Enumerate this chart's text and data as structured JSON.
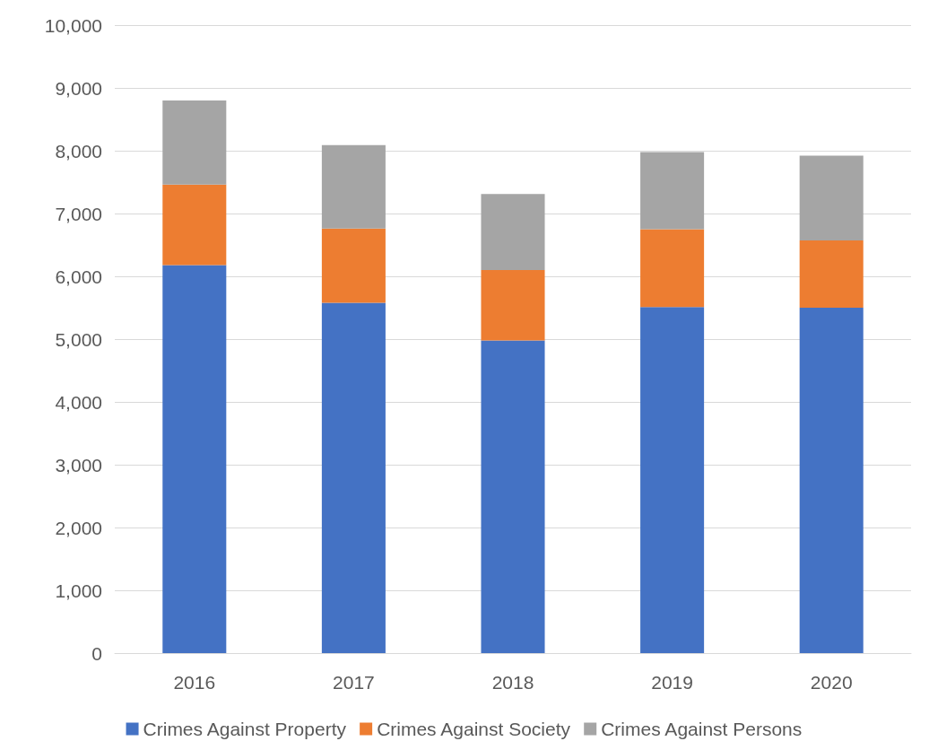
{
  "chart_data": {
    "type": "bar",
    "stacked": true,
    "categories": [
      "2016",
      "2017",
      "2018",
      "2019",
      "2020"
    ],
    "series": [
      {
        "name": "Crimes Against Property",
        "color": "#4472c4",
        "values": [
          6180,
          5580,
          4980,
          5510,
          5500
        ]
      },
      {
        "name": "Crimes Against Society",
        "color": "#ed7d31",
        "values": [
          1280,
          1180,
          1120,
          1240,
          1070
        ]
      },
      {
        "name": "Crimes Against Persons",
        "color": "#a5a5a5",
        "values": [
          1340,
          1330,
          1210,
          1230,
          1350
        ]
      }
    ],
    "ylim": [
      0,
      10000
    ],
    "yticks": [
      0,
      {
        "value": 1000,
        "label": "1,000"
      },
      {
        "value": 2000,
        "label": "2,000"
      },
      {
        "value": 3000,
        "label": "3,000"
      },
      {
        "value": 4000,
        "label": "4,000"
      },
      {
        "value": 5000,
        "label": "5,000"
      },
      {
        "value": 6000,
        "label": "6,000"
      },
      {
        "value": 7000,
        "label": "7,000"
      },
      {
        "value": 8000,
        "label": "8,000"
      },
      {
        "value": 9000,
        "label": "9,000"
      },
      {
        "value": 10000,
        "label": "10,000"
      }
    ],
    "grid": "y",
    "legend": "bottom"
  }
}
